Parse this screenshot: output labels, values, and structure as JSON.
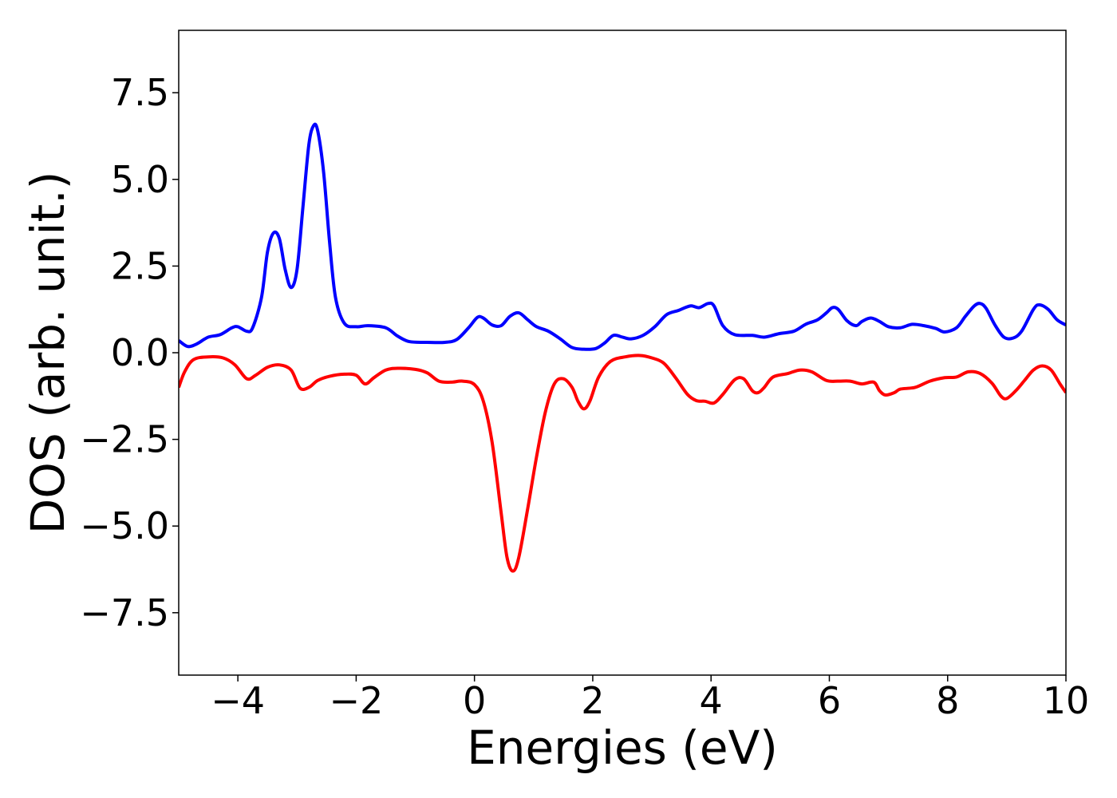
{
  "chart_data": {
    "type": "line",
    "title": "",
    "xlabel": "Energies (eV)",
    "ylabel": "DOS (arb. unit.)",
    "xlim": [
      -5,
      10
    ],
    "ylim": [
      -9.3,
      9.3
    ],
    "grid": false,
    "legend": "none",
    "x_ticks": [
      -4,
      -2,
      0,
      2,
      4,
      6,
      8,
      10
    ],
    "x_tick_labels": [
      "−4",
      "−2",
      "0",
      "2",
      "4",
      "6",
      "8",
      "10"
    ],
    "y_ticks": [
      -7.5,
      -5.0,
      -2.5,
      0.0,
      2.5,
      5.0,
      7.5
    ],
    "y_tick_labels": [
      "−7.5",
      "−5.0",
      "−2.5",
      "0.0",
      "2.5",
      "5.0",
      "7.5"
    ],
    "series": [
      {
        "color": "#0000ff",
        "points": [
          [
            -5.0,
            0.35
          ],
          [
            -4.85,
            0.18
          ],
          [
            -4.7,
            0.25
          ],
          [
            -4.5,
            0.45
          ],
          [
            -4.3,
            0.52
          ],
          [
            -4.1,
            0.72
          ],
          [
            -4.0,
            0.75
          ],
          [
            -3.85,
            0.62
          ],
          [
            -3.75,
            0.72
          ],
          [
            -3.6,
            1.6
          ],
          [
            -3.5,
            2.9
          ],
          [
            -3.4,
            3.45
          ],
          [
            -3.3,
            3.3
          ],
          [
            -3.2,
            2.4
          ],
          [
            -3.1,
            1.88
          ],
          [
            -3.0,
            2.4
          ],
          [
            -2.9,
            4.2
          ],
          [
            -2.8,
            6.0
          ],
          [
            -2.72,
            6.55
          ],
          [
            -2.65,
            6.4
          ],
          [
            -2.55,
            5.2
          ],
          [
            -2.45,
            3.2
          ],
          [
            -2.35,
            1.6
          ],
          [
            -2.2,
            0.85
          ],
          [
            -2.0,
            0.75
          ],
          [
            -1.8,
            0.78
          ],
          [
            -1.5,
            0.72
          ],
          [
            -1.3,
            0.48
          ],
          [
            -1.1,
            0.32
          ],
          [
            -0.8,
            0.3
          ],
          [
            -0.5,
            0.3
          ],
          [
            -0.3,
            0.38
          ],
          [
            -0.1,
            0.72
          ],
          [
            0.05,
            1.02
          ],
          [
            0.15,
            1.0
          ],
          [
            0.3,
            0.8
          ],
          [
            0.45,
            0.78
          ],
          [
            0.6,
            1.05
          ],
          [
            0.75,
            1.15
          ],
          [
            0.9,
            0.95
          ],
          [
            1.05,
            0.75
          ],
          [
            1.25,
            0.62
          ],
          [
            1.45,
            0.4
          ],
          [
            1.65,
            0.15
          ],
          [
            1.85,
            0.1
          ],
          [
            2.05,
            0.12
          ],
          [
            2.2,
            0.28
          ],
          [
            2.35,
            0.5
          ],
          [
            2.5,
            0.45
          ],
          [
            2.65,
            0.4
          ],
          [
            2.85,
            0.5
          ],
          [
            3.05,
            0.75
          ],
          [
            3.25,
            1.1
          ],
          [
            3.45,
            1.22
          ],
          [
            3.65,
            1.35
          ],
          [
            3.8,
            1.3
          ],
          [
            3.95,
            1.42
          ],
          [
            4.05,
            1.35
          ],
          [
            4.2,
            0.78
          ],
          [
            4.4,
            0.52
          ],
          [
            4.7,
            0.5
          ],
          [
            4.9,
            0.45
          ],
          [
            5.15,
            0.55
          ],
          [
            5.4,
            0.62
          ],
          [
            5.6,
            0.82
          ],
          [
            5.8,
            0.95
          ],
          [
            5.95,
            1.15
          ],
          [
            6.05,
            1.3
          ],
          [
            6.15,
            1.25
          ],
          [
            6.3,
            0.92
          ],
          [
            6.45,
            0.78
          ],
          [
            6.55,
            0.9
          ],
          [
            6.7,
            1.0
          ],
          [
            6.85,
            0.9
          ],
          [
            7.0,
            0.75
          ],
          [
            7.2,
            0.72
          ],
          [
            7.4,
            0.82
          ],
          [
            7.6,
            0.78
          ],
          [
            7.8,
            0.7
          ],
          [
            7.95,
            0.6
          ],
          [
            8.15,
            0.72
          ],
          [
            8.3,
            1.05
          ],
          [
            8.45,
            1.35
          ],
          [
            8.55,
            1.42
          ],
          [
            8.65,
            1.28
          ],
          [
            8.8,
            0.8
          ],
          [
            8.95,
            0.45
          ],
          [
            9.1,
            0.42
          ],
          [
            9.25,
            0.62
          ],
          [
            9.45,
            1.25
          ],
          [
            9.55,
            1.38
          ],
          [
            9.7,
            1.25
          ],
          [
            9.85,
            0.95
          ],
          [
            10.0,
            0.8
          ]
        ]
      },
      {
        "color": "#ff0000",
        "points": [
          [
            -5.0,
            -1.0
          ],
          [
            -4.9,
            -0.55
          ],
          [
            -4.75,
            -0.2
          ],
          [
            -4.5,
            -0.12
          ],
          [
            -4.25,
            -0.15
          ],
          [
            -4.05,
            -0.35
          ],
          [
            -3.85,
            -0.75
          ],
          [
            -3.7,
            -0.65
          ],
          [
            -3.5,
            -0.42
          ],
          [
            -3.3,
            -0.35
          ],
          [
            -3.1,
            -0.5
          ],
          [
            -2.95,
            -1.02
          ],
          [
            -2.8,
            -1.0
          ],
          [
            -2.65,
            -0.8
          ],
          [
            -2.45,
            -0.68
          ],
          [
            -2.2,
            -0.62
          ],
          [
            -2.0,
            -0.65
          ],
          [
            -1.85,
            -0.9
          ],
          [
            -1.7,
            -0.72
          ],
          [
            -1.5,
            -0.5
          ],
          [
            -1.3,
            -0.45
          ],
          [
            -1.0,
            -0.48
          ],
          [
            -0.8,
            -0.58
          ],
          [
            -0.6,
            -0.82
          ],
          [
            -0.4,
            -0.85
          ],
          [
            -0.2,
            -0.82
          ],
          [
            0.0,
            -0.92
          ],
          [
            0.15,
            -1.4
          ],
          [
            0.3,
            -2.6
          ],
          [
            0.45,
            -4.6
          ],
          [
            0.55,
            -5.9
          ],
          [
            0.65,
            -6.3
          ],
          [
            0.75,
            -5.9
          ],
          [
            0.9,
            -4.5
          ],
          [
            1.05,
            -3.0
          ],
          [
            1.2,
            -1.7
          ],
          [
            1.35,
            -0.9
          ],
          [
            1.5,
            -0.75
          ],
          [
            1.65,
            -1.0
          ],
          [
            1.75,
            -1.4
          ],
          [
            1.85,
            -1.62
          ],
          [
            1.95,
            -1.4
          ],
          [
            2.1,
            -0.7
          ],
          [
            2.3,
            -0.25
          ],
          [
            2.55,
            -0.12
          ],
          [
            2.8,
            -0.08
          ],
          [
            3.0,
            -0.15
          ],
          [
            3.2,
            -0.3
          ],
          [
            3.4,
            -0.72
          ],
          [
            3.6,
            -1.2
          ],
          [
            3.75,
            -1.38
          ],
          [
            3.9,
            -1.4
          ],
          [
            4.05,
            -1.45
          ],
          [
            4.2,
            -1.2
          ],
          [
            4.4,
            -0.78
          ],
          [
            4.55,
            -0.75
          ],
          [
            4.7,
            -1.1
          ],
          [
            4.8,
            -1.15
          ],
          [
            4.9,
            -1.0
          ],
          [
            5.05,
            -0.7
          ],
          [
            5.3,
            -0.6
          ],
          [
            5.5,
            -0.5
          ],
          [
            5.7,
            -0.55
          ],
          [
            5.95,
            -0.8
          ],
          [
            6.15,
            -0.82
          ],
          [
            6.35,
            -0.82
          ],
          [
            6.55,
            -0.9
          ],
          [
            6.75,
            -0.85
          ],
          [
            6.85,
            -1.1
          ],
          [
            6.95,
            -1.22
          ],
          [
            7.1,
            -1.15
          ],
          [
            7.2,
            -1.05
          ],
          [
            7.45,
            -1.0
          ],
          [
            7.7,
            -0.82
          ],
          [
            7.95,
            -0.72
          ],
          [
            8.15,
            -0.7
          ],
          [
            8.35,
            -0.55
          ],
          [
            8.55,
            -0.6
          ],
          [
            8.75,
            -0.88
          ],
          [
            8.9,
            -1.25
          ],
          [
            9.0,
            -1.32
          ],
          [
            9.15,
            -1.1
          ],
          [
            9.3,
            -0.8
          ],
          [
            9.45,
            -0.5
          ],
          [
            9.6,
            -0.38
          ],
          [
            9.75,
            -0.5
          ],
          [
            9.9,
            -0.9
          ],
          [
            10.0,
            -1.15
          ]
        ]
      }
    ]
  }
}
